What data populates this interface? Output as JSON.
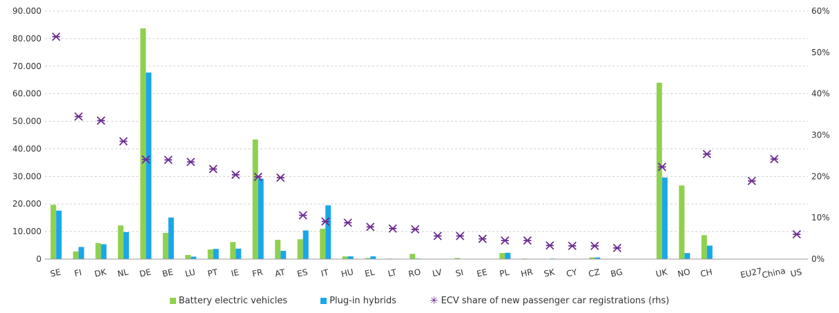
{
  "chart_data": {
    "type": "bar",
    "categories": [
      "SE",
      "FI",
      "DK",
      "NL",
      "DE",
      "BE",
      "LU",
      "PT",
      "IE",
      "FR",
      "AT",
      "ES",
      "IT",
      "HU",
      "EL",
      "LT",
      "RO",
      "LV",
      "SI",
      "EE",
      "PL",
      "HR",
      "SK",
      "CY",
      "CZ",
      "BG",
      "",
      "UK",
      "NO",
      "CH",
      "",
      "EU27",
      "China",
      "US"
    ],
    "series": [
      {
        "name": "Battery electric vehicles",
        "color": "#8fd14f",
        "axis": "left",
        "values": [
          19700,
          2800,
          5800,
          12200,
          83700,
          9500,
          1500,
          3500,
          6200,
          43400,
          7000,
          7200,
          11000,
          1000,
          400,
          200,
          1900,
          100,
          400,
          100,
          2200,
          200,
          100,
          100,
          600,
          0,
          null,
          64000,
          26700,
          8700,
          null,
          null,
          null,
          null
        ]
      },
      {
        "name": "Plug-in hybrids",
        "color": "#1aa7e8",
        "axis": "left",
        "values": [
          17600,
          4400,
          5400,
          9800,
          67700,
          15100,
          900,
          3700,
          3800,
          29200,
          3000,
          10400,
          19500,
          1000,
          1000,
          100,
          200,
          100,
          100,
          100,
          2300,
          100,
          200,
          100,
          600,
          0,
          null,
          29600,
          2200,
          4900,
          null,
          null,
          null,
          null
        ]
      },
      {
        "name": "ECV share of new passenger car registrations (rhs)",
        "color": "#6b2c91",
        "axis": "right",
        "marker": "star",
        "values": [
          53.8,
          34.5,
          33.5,
          28.5,
          24.1,
          24.0,
          23.5,
          21.8,
          20.4,
          19.9,
          19.7,
          10.6,
          9.1,
          8.8,
          7.8,
          7.4,
          7.2,
          5.6,
          5.6,
          4.9,
          4.5,
          4.5,
          3.3,
          3.2,
          3.2,
          2.7,
          null,
          22.3,
          null,
          25.4,
          null,
          18.9,
          24.2,
          6.0
        ]
      }
    ],
    "left_axis": {
      "min": 0,
      "max": 90000,
      "step": 10000,
      "tick_labels": [
        "0",
        "10.000",
        "20.000",
        "30.000",
        "40.000",
        "50.000",
        "60.000",
        "70.000",
        "80.000",
        "90.000"
      ]
    },
    "right_axis": {
      "min": 0,
      "max": 60,
      "step": 10,
      "tick_labels": [
        "0%",
        "10%",
        "20%",
        "30%",
        "40%",
        "50%",
        "60%"
      ]
    },
    "grid": true,
    "legend_position": "bottom"
  },
  "legend": [
    {
      "label": "Battery electric vehicles",
      "color": "#8fd14f",
      "kind": "square"
    },
    {
      "label": "Plug-in hybrids",
      "color": "#1aa7e8",
      "kind": "square"
    },
    {
      "label": "ECV share of new passenger car registrations (rhs)",
      "color": "#6b2c91",
      "kind": "star"
    }
  ]
}
